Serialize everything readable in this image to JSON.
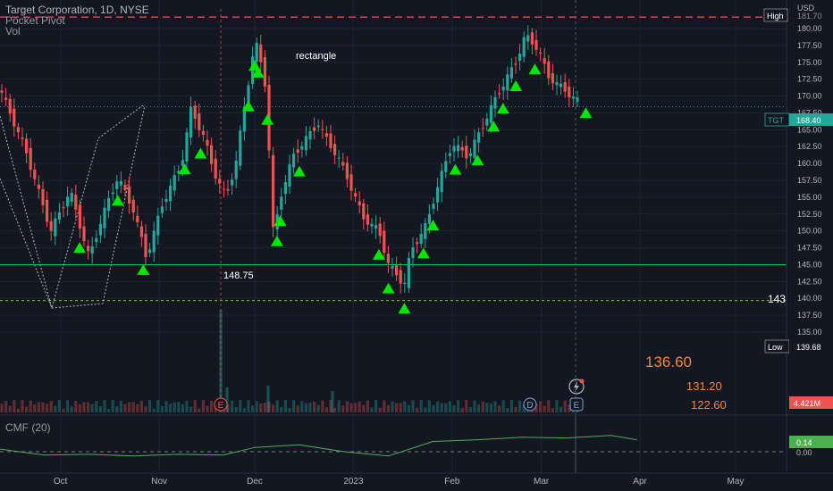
{
  "header": {
    "title": "Target Corporation, 1D, NYSE",
    "indicator_1": "Pocket Pivot",
    "indicator_2": "Vol"
  },
  "cmf_panel": {
    "label": "CMF (20)",
    "value_tag": "0.14",
    "ticks": [
      "0.14",
      "0.00"
    ]
  },
  "price_axis": {
    "currency": "USD",
    "ticks": [
      "180.00",
      "177.50",
      "175.00",
      "172.50",
      "170.00",
      "167.50",
      "165.00",
      "162.50",
      "160.00",
      "157.50",
      "155.00",
      "152.50",
      "150.00",
      "147.50",
      "145.00",
      "142.50",
      "140.00",
      "137.50",
      "135.00"
    ]
  },
  "tags": {
    "high": {
      "label": "High",
      "value": "181.70"
    },
    "current": {
      "label": "TGT",
      "value": "168.40"
    },
    "low": {
      "label": "Low",
      "value": "139.68"
    },
    "volume": {
      "value": "4.421M"
    }
  },
  "annotations": {
    "rectangle": "rectangle",
    "price_148": "148.75",
    "level_143": "143",
    "target_1": "136.60",
    "target_2": "131.20",
    "target_3": "122.60"
  },
  "event_markers": {
    "earnings": "E",
    "dividend": "D"
  },
  "time_axis": {
    "labels": [
      "Oct",
      "Nov",
      "Dec",
      "2023",
      "Feb",
      "Mar",
      "Apr",
      "May"
    ]
  },
  "colors": {
    "background": "#131722",
    "up": "#26a69a",
    "down": "#ef5350",
    "arrow": "#00e600",
    "cmf": "#4caf50",
    "level_line": "#00c853",
    "orange": "#f0883e"
  },
  "chart_data": {
    "type": "candlestick",
    "title": "Target Corporation, 1D, NYSE",
    "ylabel": "USD",
    "ylim": [
      133.5,
      182
    ],
    "levels": {
      "high": 181.7,
      "low": 139.68,
      "support": 145,
      "current": 168.4
    },
    "close_path": [
      {
        "date": "2022-09-12",
        "close": 171
      },
      {
        "date": "2022-09-20",
        "close": 162
      },
      {
        "date": "2022-09-28",
        "close": 150
      },
      {
        "date": "2022-10-04",
        "close": 156
      },
      {
        "date": "2022-10-10",
        "close": 146
      },
      {
        "date": "2022-10-14",
        "close": 152
      },
      {
        "date": "2022-10-19",
        "close": 158
      },
      {
        "date": "2022-10-24",
        "close": 153
      },
      {
        "date": "2022-10-28",
        "close": 146
      },
      {
        "date": "2022-11-02",
        "close": 154
      },
      {
        "date": "2022-11-08",
        "close": 160
      },
      {
        "date": "2022-11-11",
        "close": 168
      },
      {
        "date": "2022-11-15",
        "close": 164
      },
      {
        "date": "2022-11-18",
        "close": 159
      },
      {
        "date": "2022-11-22",
        "close": 155
      },
      {
        "date": "2022-11-25",
        "close": 160
      },
      {
        "date": "2022-11-29",
        "close": 172
      },
      {
        "date": "2022-12-01",
        "close": 178
      },
      {
        "date": "2022-12-02",
        "close": 177
      },
      {
        "date": "2022-12-05",
        "close": 170
      },
      {
        "date": "2022-12-06",
        "close": 154
      },
      {
        "date": "2022-12-07",
        "close": 149
      },
      {
        "date": "2022-12-09",
        "close": 155
      },
      {
        "date": "2022-12-13",
        "close": 161
      },
      {
        "date": "2022-12-16",
        "close": 163
      },
      {
        "date": "2022-12-21",
        "close": 166
      },
      {
        "date": "2022-12-23",
        "close": 164
      },
      {
        "date": "2022-12-27",
        "close": 161
      },
      {
        "date": "2022-12-30",
        "close": 158
      },
      {
        "date": "2023-01-04",
        "close": 152
      },
      {
        "date": "2023-01-09",
        "close": 150
      },
      {
        "date": "2023-01-12",
        "close": 145
      },
      {
        "date": "2023-01-17",
        "close": 142
      },
      {
        "date": "2023-01-19",
        "close": 147
      },
      {
        "date": "2023-01-24",
        "close": 151
      },
      {
        "date": "2023-01-27",
        "close": 156
      },
      {
        "date": "2023-02-01",
        "close": 163
      },
      {
        "date": "2023-02-06",
        "close": 161
      },
      {
        "date": "2023-02-10",
        "close": 165
      },
      {
        "date": "2023-02-15",
        "close": 170
      },
      {
        "date": "2023-02-21",
        "close": 175
      },
      {
        "date": "2023-02-24",
        "close": 179
      },
      {
        "date": "2023-02-28",
        "close": 177
      },
      {
        "date": "2023-03-03",
        "close": 173
      },
      {
        "date": "2023-03-08",
        "close": 171
      },
      {
        "date": "2023-03-13",
        "close": 169
      },
      {
        "date": "2023-03-16",
        "close": 172
      },
      {
        "date": "2023-03-20",
        "close": 170
      },
      {
        "date": "2023-03-23",
        "close": 166
      },
      {
        "date": "2023-03-27",
        "close": 163
      },
      {
        "date": "2023-03-29",
        "close": 166
      },
      {
        "date": "2023-03-31",
        "close": 168.4
      }
    ],
    "pocket_pivot_dates": [
      "2022-10-07",
      "2022-10-19",
      "2022-10-27",
      "2022-11-09",
      "2022-11-14",
      "2022-11-29",
      "2022-12-01",
      "2022-12-02",
      "2022-12-05",
      "2022-12-08",
      "2022-12-09",
      "2022-12-15",
      "2023-01-09",
      "2023-01-12",
      "2023-01-17",
      "2023-01-23",
      "2023-01-26",
      "2023-02-02",
      "2023-02-09",
      "2023-02-14",
      "2023-02-17",
      "2023-02-21",
      "2023-02-27",
      "2023-03-15"
    ],
    "cmf_path": [
      {
        "date": "2022-09-12",
        "value": 0.03
      },
      {
        "date": "2022-09-26",
        "value": -0.04
      },
      {
        "date": "2022-10-10",
        "value": -0.03
      },
      {
        "date": "2022-10-24",
        "value": -0.05
      },
      {
        "date": "2022-11-07",
        "value": -0.03
      },
      {
        "date": "2022-11-21",
        "value": -0.04
      },
      {
        "date": "2022-12-01",
        "value": 0.05
      },
      {
        "date": "2022-12-15",
        "value": 0.08
      },
      {
        "date": "2022-12-29",
        "value": 0.0
      },
      {
        "date": "2023-01-12",
        "value": -0.05
      },
      {
        "date": "2023-01-26",
        "value": 0.12
      },
      {
        "date": "2023-02-09",
        "value": 0.14
      },
      {
        "date": "2023-02-23",
        "value": 0.17
      },
      {
        "date": "2023-03-09",
        "value": 0.16
      },
      {
        "date": "2023-03-23",
        "value": 0.19
      },
      {
        "date": "2023-03-31",
        "value": 0.14
      }
    ]
  }
}
